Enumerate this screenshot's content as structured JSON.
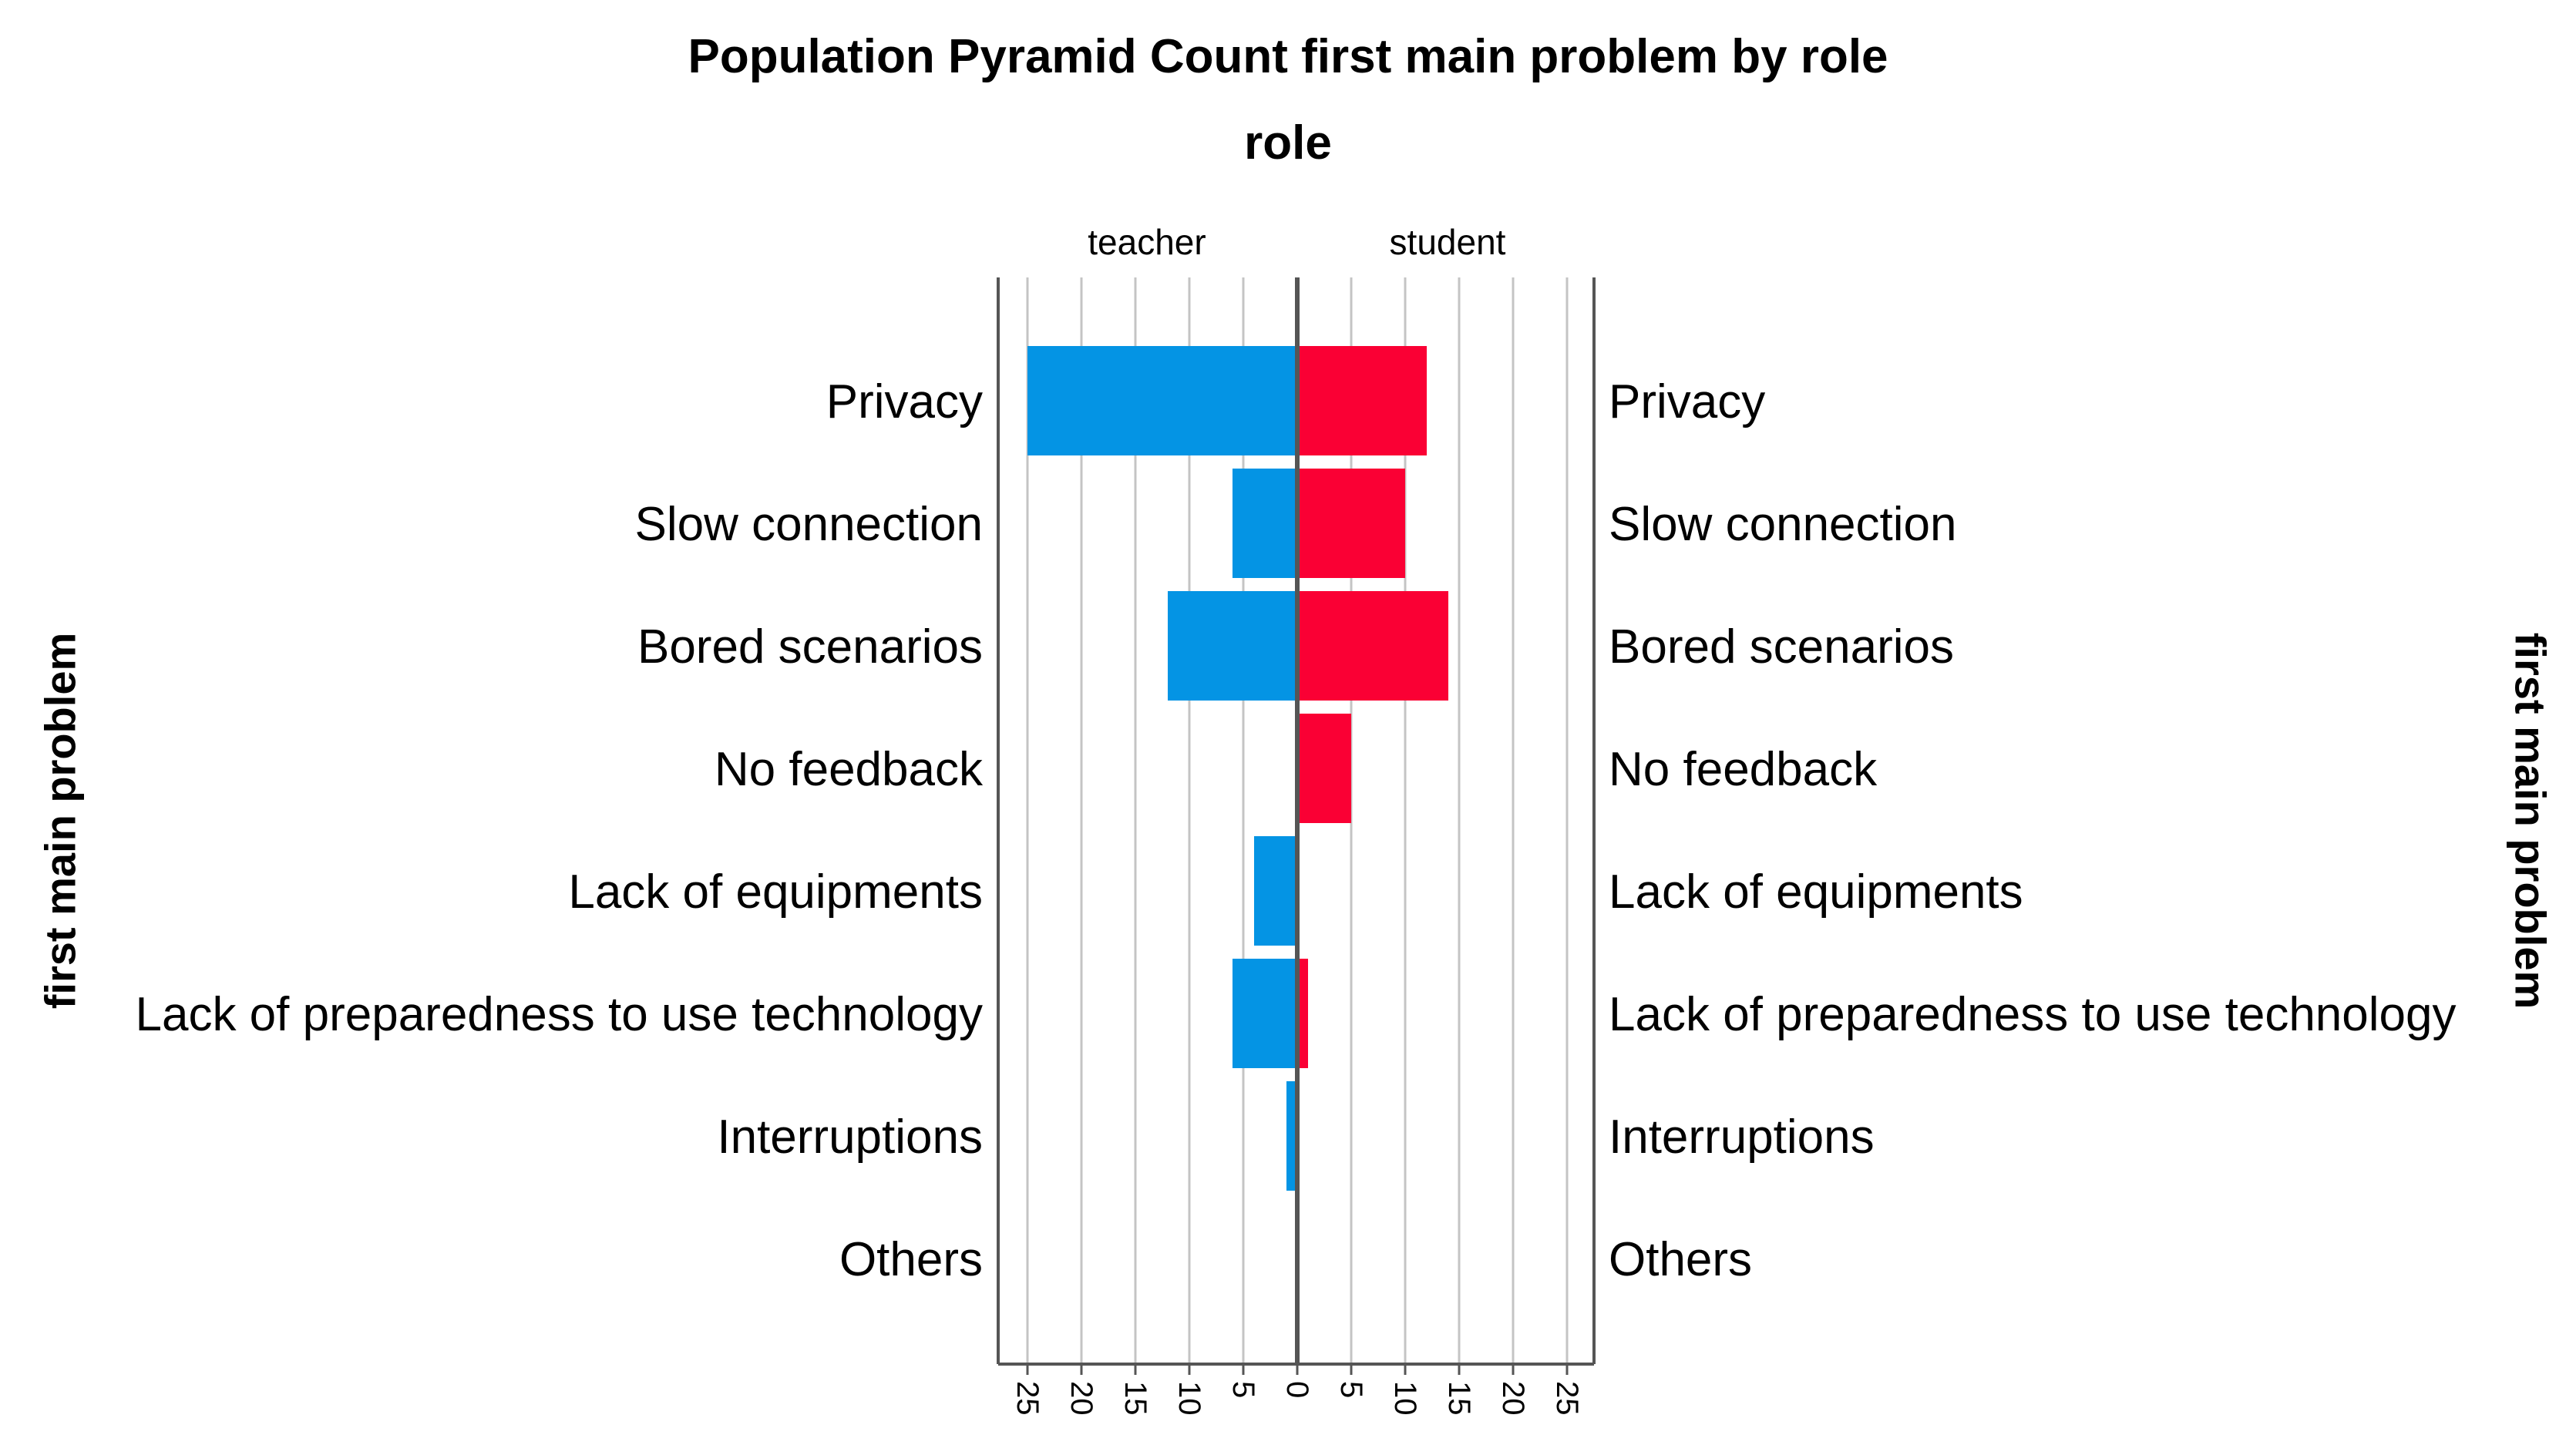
{
  "chart_data": {
    "type": "bar",
    "title": "Population Pyramid Count first main problem  by role",
    "panel_label": "role",
    "left_group": "teacher",
    "right_group": "student",
    "ylabel": "first main problem",
    "categories": [
      "Privacy",
      "Slow connection",
      "Bored scenarios",
      "No feedback",
      "Lack of equipments",
      "Lack of preparedness to use technology",
      "Interruptions",
      "Others"
    ],
    "series": [
      {
        "name": "teacher",
        "values": [
          25,
          6,
          12,
          0,
          4,
          6,
          1,
          0
        ]
      },
      {
        "name": "student",
        "values": [
          12,
          10,
          14,
          5,
          0,
          1,
          0,
          0
        ]
      }
    ],
    "xlim": [
      0,
      28
    ],
    "ticks": [
      0,
      5,
      10,
      15,
      20,
      25
    ],
    "grid": true,
    "colors": {
      "teacher": "#0494E4",
      "student": "#FA0034",
      "grid": "#C4C4C4",
      "axis": "#555555"
    }
  }
}
